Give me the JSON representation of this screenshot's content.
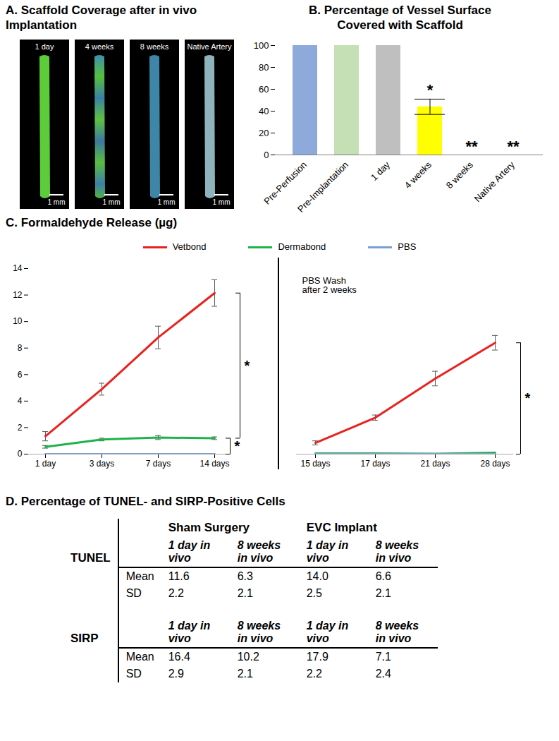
{
  "panel_a": {
    "title": "A. Scaffold Coverage after in vivo Implantation",
    "images": [
      {
        "label": "1 day",
        "scale_bar": "1 mm"
      },
      {
        "label": "4 weeks",
        "scale_bar": "1 mm"
      },
      {
        "label": "8 weeks",
        "scale_bar": "1 mm"
      },
      {
        "label": "Native Artery",
        "scale_bar": "1 mm"
      }
    ]
  },
  "chart_data": [
    {
      "type": "bar",
      "title": "B. Percentage of Vessel Surface Covered with Scaffold",
      "categories": [
        "Pre-Perfusion",
        "Pre-Implantation",
        "1 day",
        "4 weeks",
        "8 weeks",
        "Native Artery"
      ],
      "values": [
        100,
        100,
        100,
        44,
        0,
        0
      ],
      "errors": [
        null,
        null,
        null,
        7,
        null,
        null
      ],
      "colors": [
        "#8eaadb",
        "#c5e0b4",
        "#bfbfbf",
        "#ffff00",
        "#ffffff",
        "#ffffff"
      ],
      "ylim": [
        0,
        100
      ],
      "yticks": [
        0,
        20,
        40,
        60,
        80,
        100
      ],
      "grid": false,
      "annotations": [
        {
          "category": "4 weeks",
          "text": "*"
        },
        {
          "category": "8 weeks",
          "text": "**"
        },
        {
          "category": "Native Artery",
          "text": "**"
        }
      ]
    },
    {
      "type": "line",
      "title": "C. Formaldehyde Release (µg)",
      "legend": "top",
      "x": [
        "1 day",
        "3 days",
        "7 days",
        "14 days"
      ],
      "series": [
        {
          "name": "Vetbond",
          "color": "#e8231f",
          "values": [
            1.35,
            4.9,
            8.8,
            12.15
          ],
          "errors": [
            0.35,
            0.45,
            0.85,
            1.0
          ]
        },
        {
          "name": "Dermabond",
          "color": "#1db34a",
          "values": [
            0.55,
            1.1,
            1.25,
            1.2
          ],
          "errors": [
            0.1,
            0.1,
            0.15,
            0.1
          ]
        },
        {
          "name": "PBS",
          "color": "#7a9fd4",
          "values": [
            0,
            0,
            0,
            0
          ]
        }
      ],
      "ylim": [
        0,
        14
      ],
      "yticks": [
        0,
        2,
        4,
        6,
        8,
        10,
        12,
        14
      ],
      "grid": false,
      "significance": [
        {
          "from": "Vetbond",
          "to": "Dermabond",
          "text": "*"
        },
        {
          "from": "Dermabond",
          "to": "PBS",
          "text": "*"
        }
      ]
    },
    {
      "type": "line",
      "x": [
        "15 days",
        "17 days",
        "21 days",
        "28 days"
      ],
      "series": [
        {
          "name": "Vetbond",
          "color": "#e8231f",
          "values": [
            0.85,
            2.75,
            5.7,
            8.4
          ],
          "errors": [
            0.15,
            0.2,
            0.55,
            0.55
          ]
        },
        {
          "name": "Dermabond",
          "color": "#1db34a",
          "values": [
            0.05,
            0.05,
            0.03,
            0.1
          ]
        },
        {
          "name": "PBS",
          "color": "#7a9fd4",
          "values": [
            0,
            0,
            0,
            0
          ]
        }
      ],
      "ylim": [
        0,
        14
      ],
      "tick_labels": "x",
      "grid": false,
      "annotations": [
        {
          "text": "PBS Wash after 2 weeks"
        }
      ],
      "significance": [
        {
          "from": "Vetbond",
          "to": "PBS",
          "text": "*"
        }
      ]
    }
  ],
  "table": {
    "title": "D. Percentage of TUNEL- and SIRP-Positive Cells",
    "groups": [
      "Sham Surgery",
      "EVC Implant"
    ],
    "sections": [
      {
        "name": "TUNEL",
        "columns": [
          "1 day in vivo",
          "8 weeks in vivo",
          "1 day in vivo",
          "8 weeks in vivo"
        ],
        "rows": [
          {
            "label": "Mean",
            "cells": [
              "11.6",
              "6.3",
              "14.0",
              "6.6"
            ]
          },
          {
            "label": "SD",
            "cells": [
              "2.2",
              "2.1",
              "2.5",
              "2.1"
            ]
          }
        ]
      },
      {
        "name": "SIRP",
        "columns": [
          "1 day in vivo",
          "8 weeks in vivo",
          "1 day in vivo",
          "8 weeks in vivo"
        ],
        "rows": [
          {
            "label": "Mean",
            "cells": [
              "16.4",
              "10.2",
              "17.9",
              "7.1"
            ]
          },
          {
            "label": "SD",
            "cells": [
              "2.9",
              "2.1",
              "2.2",
              "2.4"
            ]
          }
        ]
      }
    ]
  }
}
